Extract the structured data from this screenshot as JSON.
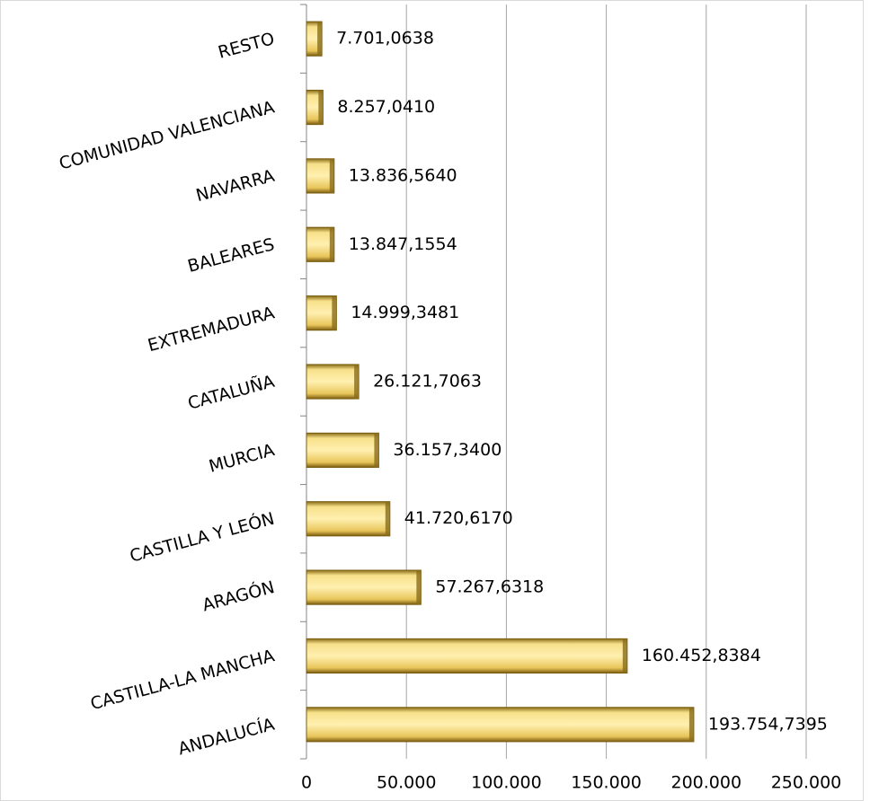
{
  "chart_data": {
    "type": "bar",
    "orientation": "horizontal",
    "categories": [
      "ANDALUCÍA",
      "CASTILLA-LA MANCHA",
      "ARAGÓN",
      "CASTILLA Y LEÓN",
      "MURCIA",
      "CATALUÑA",
      "EXTREMADURA",
      "BALEARES",
      "NAVARRA",
      "COMUNIDAD VALENCIANA",
      "RESTO"
    ],
    "values": [
      193754.7395,
      160452.8384,
      57267.6318,
      41720.617,
      36157.34,
      26121.7063,
      14999.3481,
      13847.1554,
      13836.564,
      8257.041,
      7701.0638
    ],
    "value_labels": [
      "193.754,7395",
      "160.452,8384",
      "57.267,6318",
      "41.720,6170",
      "36.157,3400",
      "26.121,7063",
      "14.999,3481",
      "13.847,1554",
      "13.836,5640",
      "8.257,0410",
      "7.701,0638"
    ],
    "color": "#f5d76e",
    "xlim": [
      0,
      250000
    ],
    "xticks": [
      0,
      {
        "value": 50000,
        "label": "50.000"
      },
      {
        "value": 100000,
        "label": "100.000"
      },
      {
        "value": 150000,
        "label": "150.000"
      },
      {
        "value": 200000,
        "label": "200.000"
      },
      {
        "value": 250000,
        "label": "250.000"
      }
    ],
    "grid": true
  }
}
